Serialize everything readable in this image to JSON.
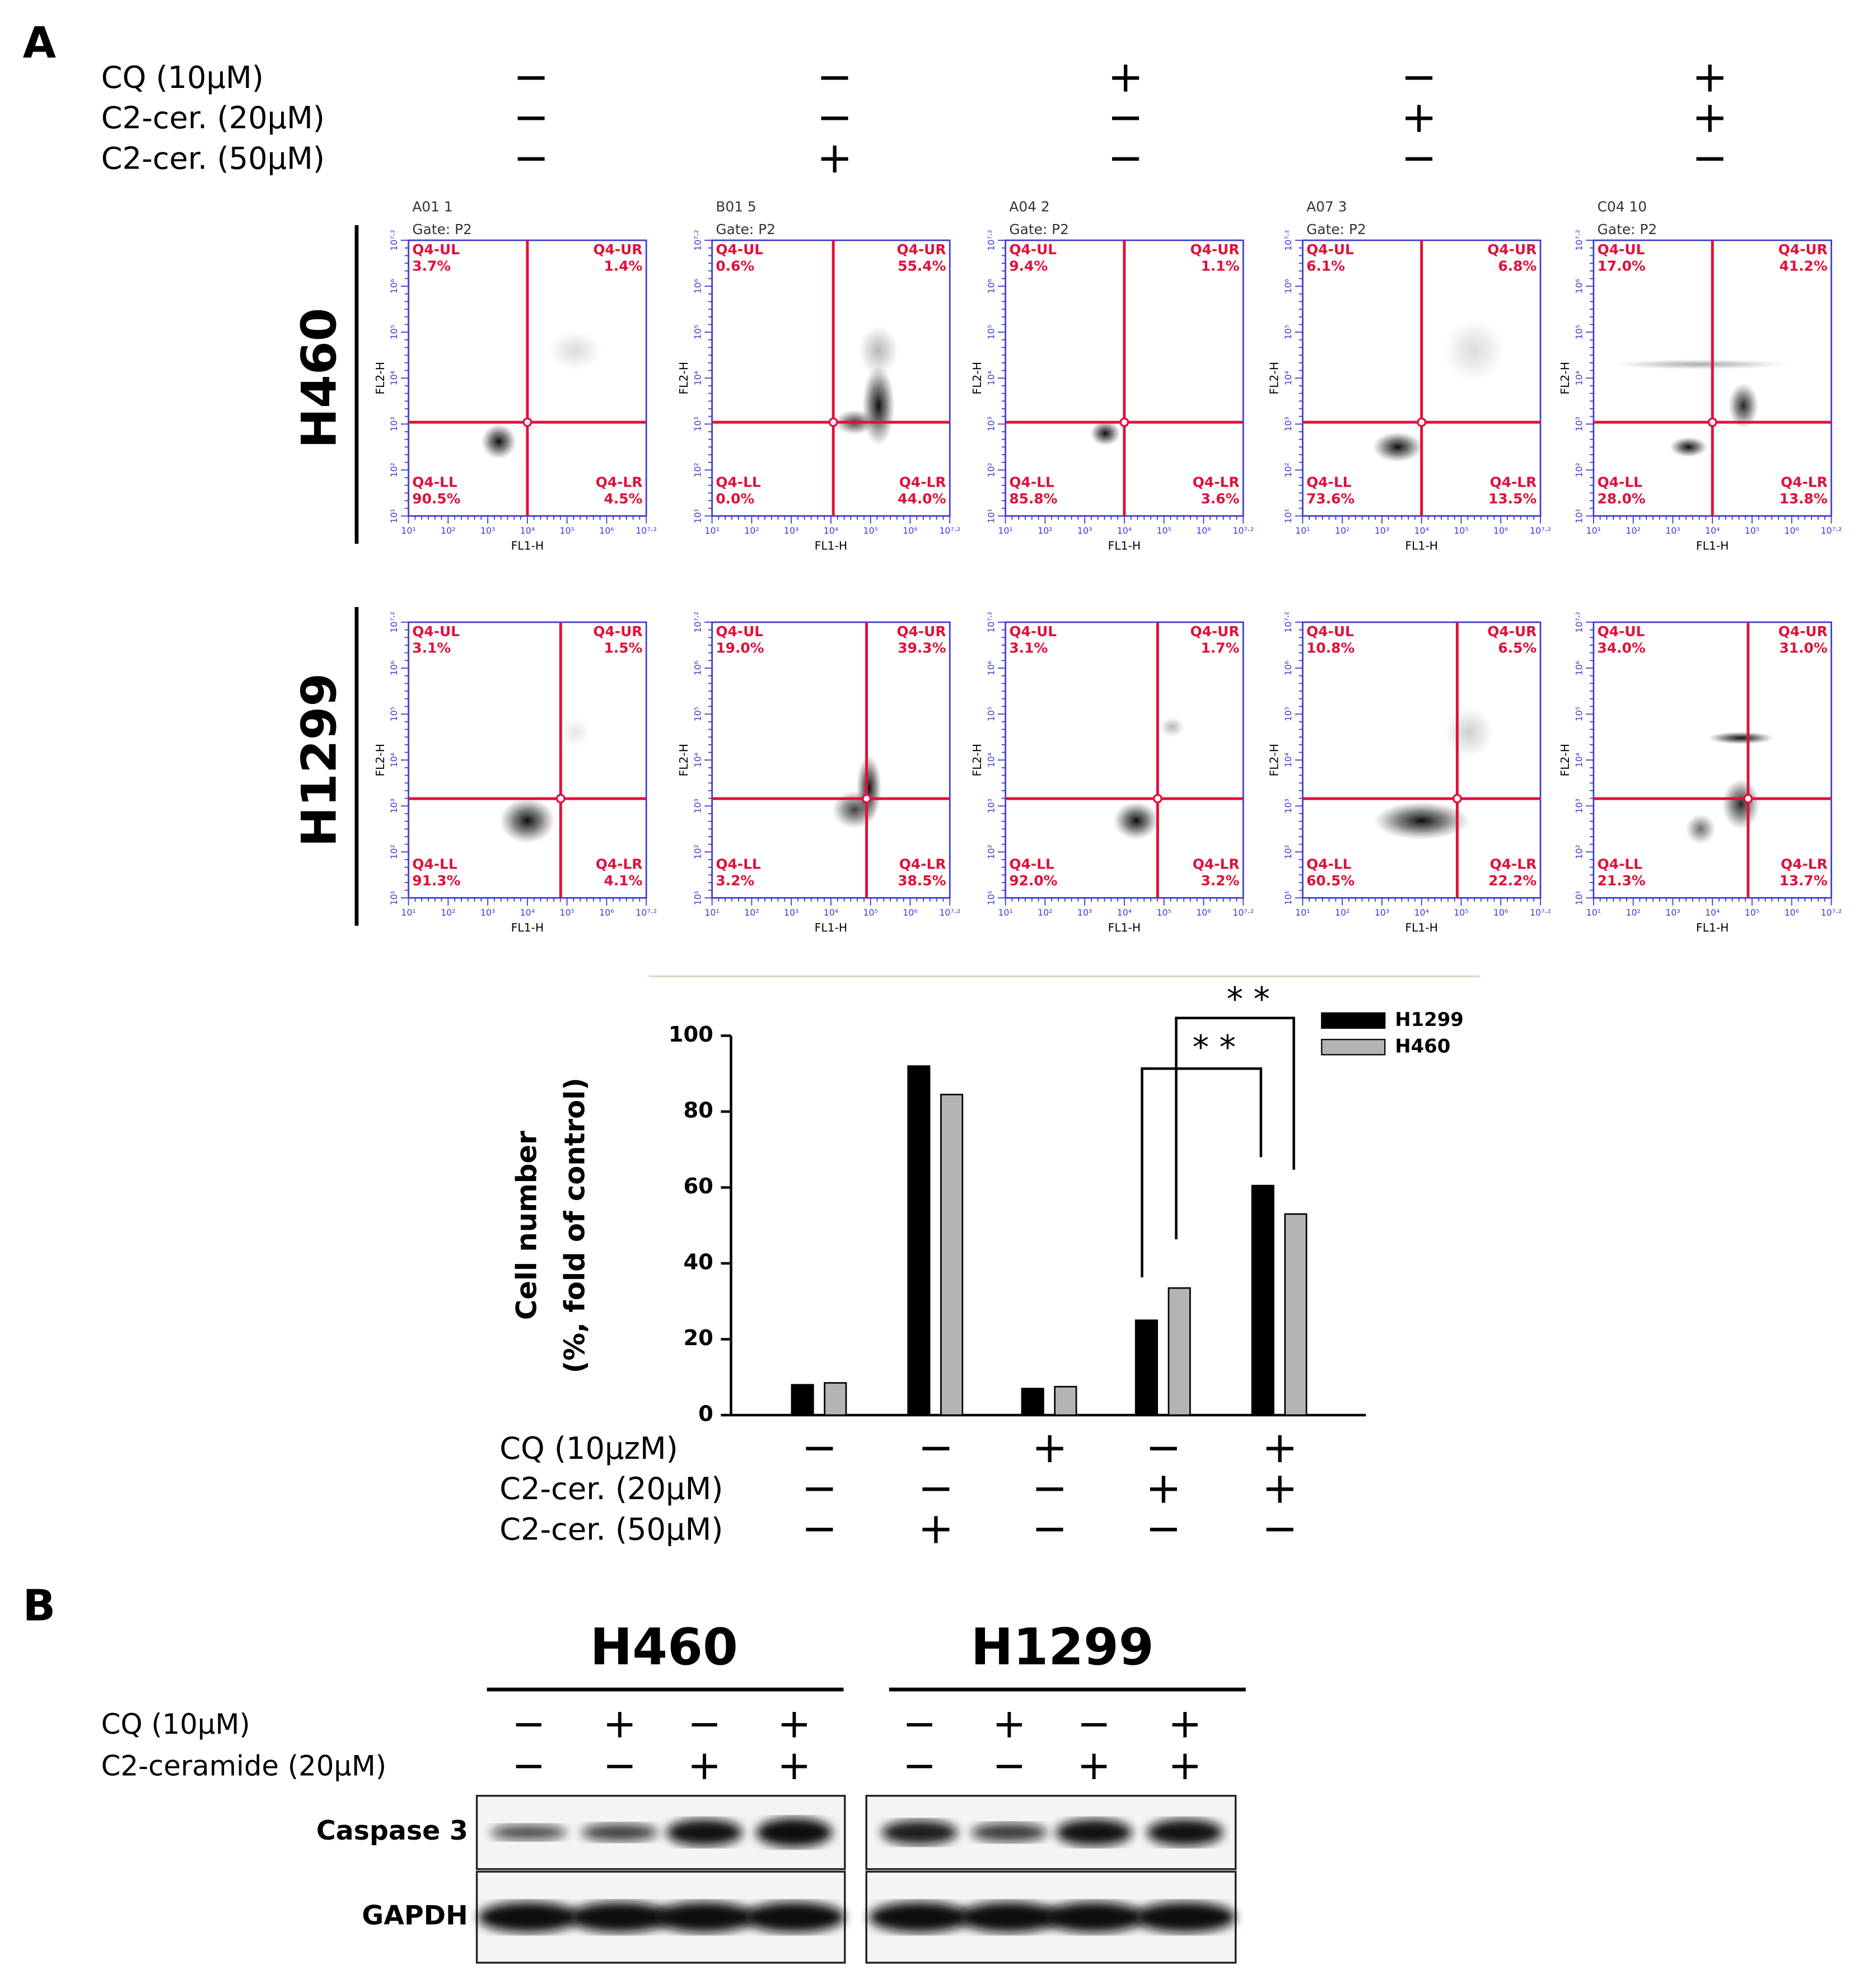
{
  "panel_a": {
    "label": "A",
    "conditions": [
      {
        "label": "CQ (10μM)",
        "signs": [
          "−",
          "−",
          "+",
          "−",
          "+"
        ]
      },
      {
        "label": "C2-cer. (20μM)",
        "signs": [
          "−",
          "−",
          "−",
          "+",
          "+"
        ]
      },
      {
        "label": "C2-cer. (50μM)",
        "signs": [
          "−",
          "+",
          "−",
          "−",
          "−"
        ]
      }
    ],
    "flow": {
      "x_label": "FL1-H",
      "y_label": "FL2-H",
      "gate": "Gate: P2",
      "quadrant_names": [
        "Q4-UL",
        "Q4-UR",
        "Q4-LL",
        "Q4-LR"
      ],
      "x_ticks": [
        "10¹",
        "10²",
        "10³",
        "10⁴",
        "10⁵",
        "10⁶",
        "10⁷·²"
      ],
      "cell_lines": [
        {
          "name": "H460",
          "samples": [
            {
              "id": "A01 1",
              "ul": "3.7%",
              "ur": "1.4%",
              "ll": "90.5%",
              "lr": "4.5%"
            },
            {
              "id": "B01 5",
              "ul": "0.6%",
              "ur": "55.4%",
              "ll": "0.0%",
              "lr": "44.0%"
            },
            {
              "id": "A04 2",
              "ul": "9.4%",
              "ur": "1.1%",
              "ll": "85.8%",
              "lr": "3.6%"
            },
            {
              "id": "A07 3",
              "ul": "6.1%",
              "ur": "6.8%",
              "ll": "73.6%",
              "lr": "13.5%"
            },
            {
              "id": "C04 10",
              "ul": "17.0%",
              "ur": "41.2%",
              "ll": "28.0%",
              "lr": "13.8%"
            }
          ]
        },
        {
          "name": "H1299",
          "samples": [
            {
              "ul": "3.1%",
              "ur": "1.5%",
              "ll": "91.3%",
              "lr": "4.1%"
            },
            {
              "ul": "19.0%",
              "ur": "39.3%",
              "ll": "3.2%",
              "lr": "38.5%"
            },
            {
              "ul": "3.1%",
              "ur": "1.7%",
              "ll": "92.0%",
              "lr": "3.2%"
            },
            {
              "ul": "10.8%",
              "ur": "6.5%",
              "ll": "60.5%",
              "lr": "22.2%"
            },
            {
              "ul": "34.0%",
              "ur": "31.0%",
              "ll": "21.3%",
              "lr": "13.7%"
            }
          ]
        }
      ]
    }
  },
  "chart_data": {
    "type": "bar",
    "ylabel": [
      "Cell number",
      "(%, fold of control)"
    ],
    "ylim": [
      0,
      100
    ],
    "yticks": [
      0,
      20,
      40,
      60,
      80,
      100
    ],
    "series": [
      {
        "name": "H1299",
        "color": "#000000",
        "values": [
          8,
          92,
          7,
          25,
          60.5
        ]
      },
      {
        "name": "H460",
        "color": "#b4b4b4",
        "values": [
          8.5,
          84.5,
          7.5,
          33.5,
          53
        ]
      }
    ],
    "annotations": [
      "* *",
      "* *"
    ],
    "conditions": [
      {
        "label": "CQ (10μzM)",
        "signs": [
          "−",
          "−",
          "+",
          "−",
          "+"
        ]
      },
      {
        "label": "C2-cer. (20μM)",
        "signs": [
          "−",
          "−",
          "−",
          "+",
          "+"
        ]
      },
      {
        "label": "C2-cer. (50μM)",
        "signs": [
          "−",
          "+",
          "−",
          "−",
          "−"
        ]
      }
    ]
  },
  "panel_b": {
    "label": "B",
    "groups": [
      "H460",
      "H1299"
    ],
    "conditions": [
      {
        "label": "CQ (10μM)",
        "signs": [
          "−",
          "+",
          "−",
          "+",
          "−",
          "+",
          "−",
          "+"
        ]
      },
      {
        "label": "C2-ceramide (20μM)",
        "signs": [
          "−",
          "−",
          "+",
          "+",
          "−",
          "−",
          "+",
          "+"
        ]
      }
    ],
    "blots": [
      "Caspase 3",
      "GAPDH"
    ]
  }
}
